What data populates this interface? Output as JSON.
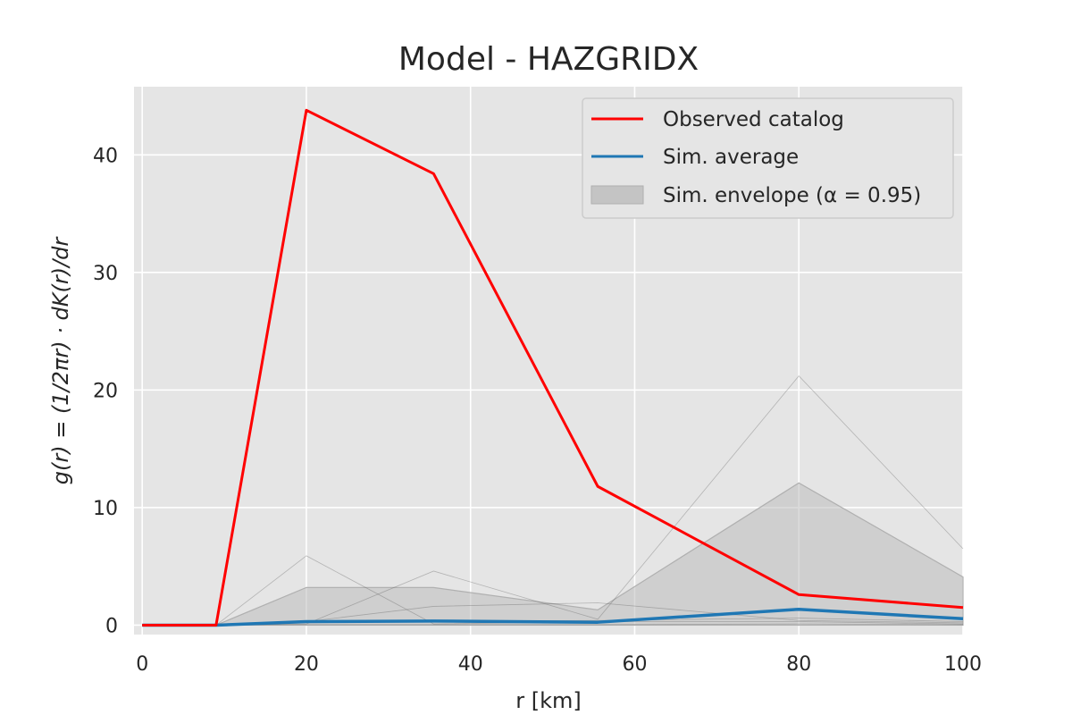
{
  "chart_data": {
    "type": "line",
    "title": "Model - HAZGRIDX",
    "xlabel": "r  [km]",
    "ylabel": "g(r) = (1/2πr) · dK(r)/dr",
    "xlim": [
      -1,
      100
    ],
    "ylim": [
      -0.8,
      45.8
    ],
    "x_ticks": [
      0,
      20,
      40,
      60,
      80,
      100
    ],
    "y_ticks": [
      0,
      10,
      20,
      30,
      40
    ],
    "grid": true,
    "legend_position": "top-right",
    "x": [
      0,
      9,
      20,
      35.5,
      55.5,
      80,
      100
    ],
    "series": [
      {
        "name": "Observed catalog",
        "color": "#ff0000",
        "values": [
          0,
          0,
          43.8,
          38.4,
          11.8,
          2.6,
          1.5
        ]
      },
      {
        "name": "Sim. average",
        "color": "#1f77b4",
        "values": [
          0,
          0,
          0.3,
          0.35,
          0.25,
          1.35,
          0.55
        ]
      }
    ],
    "envelope": {
      "name": "Sim. envelope (α = 0.95)",
      "color": "#bfbfbf",
      "lower": [
        0,
        0,
        0,
        0,
        0,
        0,
        0
      ],
      "upper": [
        0,
        0,
        3.2,
        3.2,
        1.3,
        12.1,
        4.1
      ]
    },
    "simulations": [
      [
        0,
        0,
        5.9,
        0.1,
        0.3,
        0.3,
        0.1
      ],
      [
        0,
        0,
        0.1,
        4.6,
        0.5,
        21.2,
        6.5
      ],
      [
        0,
        0,
        0.3,
        1.6,
        1.9,
        0.4,
        0.2
      ],
      [
        0,
        0,
        0.2,
        0.3,
        0.4,
        0.6,
        0.3
      ],
      [
        0,
        0,
        0.05,
        0.05,
        0.05,
        0.1,
        0.05
      ]
    ]
  }
}
